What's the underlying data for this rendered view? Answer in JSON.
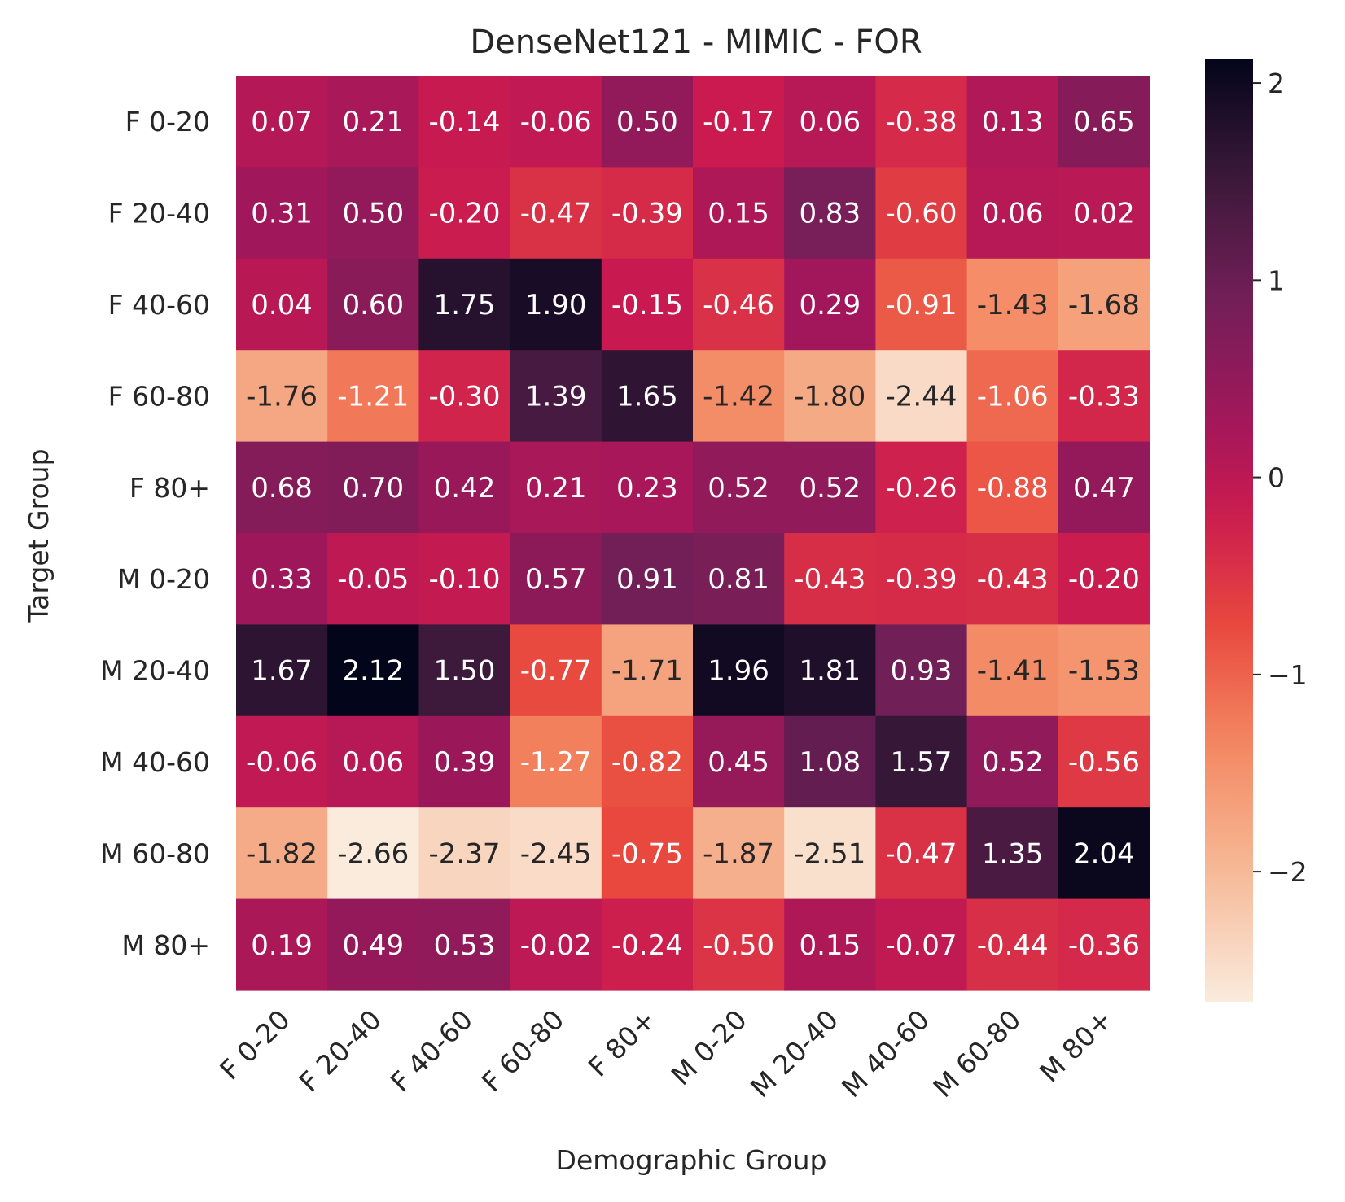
{
  "chart_data": {
    "type": "heatmap",
    "title": "DenseNet121 - MIMIC - FOR",
    "xlabel": "Demographic Group",
    "ylabel": "Target Group",
    "x_categories": [
      "F 0-20",
      "F 20-40",
      "F 40-60",
      "F 60-80",
      "F 80+",
      "M 0-20",
      "M 20-40",
      "M 40-60",
      "M 60-80",
      "M 80+"
    ],
    "y_categories": [
      "F 0-20",
      "F 20-40",
      "F 40-60",
      "F 60-80",
      "F 80+",
      "M 0-20",
      "M 20-40",
      "M 40-60",
      "M 60-80",
      "M 80+"
    ],
    "values": [
      [
        0.07,
        0.21,
        -0.14,
        -0.06,
        0.5,
        -0.17,
        0.06,
        -0.38,
        0.13,
        0.65
      ],
      [
        0.31,
        0.5,
        -0.2,
        -0.47,
        -0.39,
        0.15,
        0.83,
        -0.6,
        0.06,
        0.02
      ],
      [
        0.04,
        0.6,
        1.75,
        1.9,
        -0.15,
        -0.46,
        0.29,
        -0.91,
        -1.43,
        -1.68
      ],
      [
        -1.76,
        -1.21,
        -0.3,
        1.39,
        1.65,
        -1.42,
        -1.8,
        -2.44,
        -1.06,
        -0.33
      ],
      [
        0.68,
        0.7,
        0.42,
        0.21,
        0.23,
        0.52,
        0.52,
        -0.26,
        -0.88,
        0.47
      ],
      [
        0.33,
        -0.05,
        -0.1,
        0.57,
        0.91,
        0.81,
        -0.43,
        -0.39,
        -0.43,
        -0.2
      ],
      [
        1.67,
        2.12,
        1.5,
        -0.77,
        -1.71,
        1.96,
        1.81,
        0.93,
        -1.41,
        -1.53
      ],
      [
        -0.06,
        0.06,
        0.39,
        -1.27,
        -0.82,
        0.45,
        1.08,
        1.57,
        0.52,
        -0.56
      ],
      [
        -1.82,
        -2.66,
        -2.37,
        -2.45,
        -0.75,
        -1.87,
        -2.51,
        -0.47,
        1.35,
        2.04
      ],
      [
        0.19,
        0.49,
        0.53,
        -0.02,
        -0.24,
        -0.5,
        0.15,
        -0.07,
        -0.44,
        -0.36
      ]
    ],
    "value_labels": [
      [
        "0.07",
        "0.21",
        "-0.14",
        "-0.06",
        "0.50",
        "-0.17",
        "0.06",
        "-0.38",
        "0.13",
        "0.65"
      ],
      [
        "0.31",
        "0.50",
        "-0.20",
        "-0.47",
        "-0.39",
        "0.15",
        "0.83",
        "-0.60",
        "0.06",
        "0.02"
      ],
      [
        "0.04",
        "0.60",
        "1.75",
        "1.90",
        "-0.15",
        "-0.46",
        "0.29",
        "-0.91",
        "-1.43",
        "-1.68"
      ],
      [
        "-1.76",
        "-1.21",
        "-0.30",
        "1.39",
        "1.65",
        "-1.42",
        "-1.80",
        "-2.44",
        "-1.06",
        "-0.33"
      ],
      [
        "0.68",
        "0.70",
        "0.42",
        "0.21",
        "0.23",
        "0.52",
        "0.52",
        "-0.26",
        "-0.88",
        "0.47"
      ],
      [
        "0.33",
        "-0.05",
        "-0.10",
        "0.57",
        "0.91",
        "0.81",
        "-0.43",
        "-0.39",
        "-0.43",
        "-0.20"
      ],
      [
        "1.67",
        "2.12",
        "1.50",
        "-0.77",
        "-1.71",
        "1.96",
        "1.81",
        "0.93",
        "-1.41",
        "-1.53"
      ],
      [
        "-0.06",
        "0.06",
        "0.39",
        "-1.27",
        "-0.82",
        "0.45",
        "1.08",
        "1.57",
        "0.52",
        "-0.56"
      ],
      [
        "-1.82",
        "-2.66",
        "-2.37",
        "-2.45",
        "-0.75",
        "-1.87",
        "-2.51",
        "-0.47",
        "1.35",
        "2.04"
      ],
      [
        "0.19",
        "0.49",
        "0.53",
        "-0.02",
        "-0.24",
        "-0.50",
        "0.15",
        "-0.07",
        "-0.44",
        "-0.36"
      ]
    ],
    "colorbar": {
      "vmin": -2.66,
      "vmax": 2.12,
      "ticks": [
        2,
        1,
        0,
        -1,
        -2
      ],
      "tick_labels": [
        "2",
        "1",
        "0",
        "−1",
        "−2"
      ]
    },
    "colormap": "rocket_r",
    "grid": false,
    "x_tick_rotation_deg": 45
  }
}
